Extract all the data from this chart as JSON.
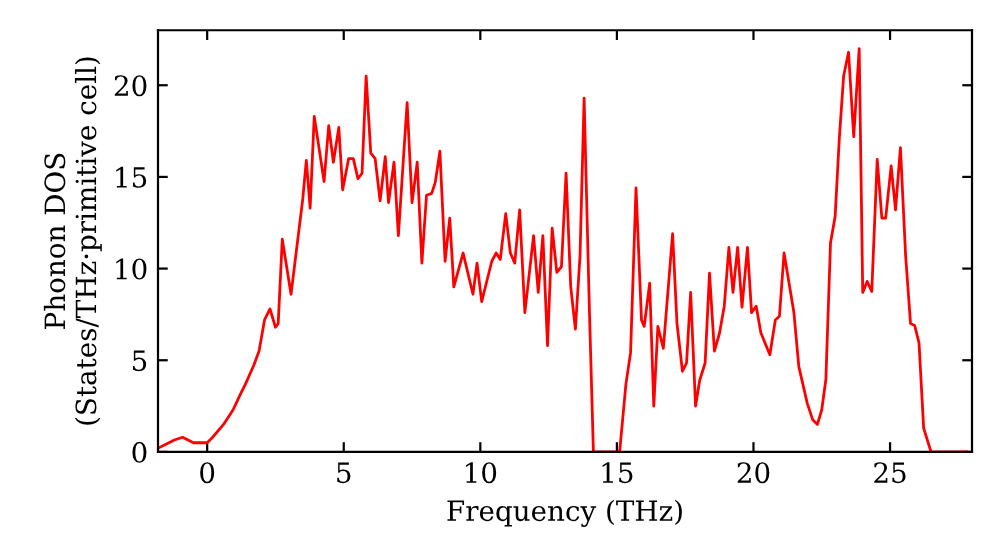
{
  "chart_data": {
    "type": "line",
    "xlabel": "Frequency (THz)",
    "ylabel": "Phonon DOS\n(States/THz·primitive cell)",
    "xlim": [
      -1.8,
      28
    ],
    "ylim": [
      0,
      23
    ],
    "xticks": [
      0,
      5,
      10,
      15,
      20,
      25
    ],
    "yticks": [
      0,
      5,
      10,
      15,
      20
    ],
    "grid": false,
    "legend": false,
    "marker": "none",
    "line_style": "solid",
    "series": [
      {
        "color": "#ff0000",
        "x": [
          -1.8,
          -1.2,
          -0.9,
          -0.5,
          0,
          0.2,
          0.6,
          0.95,
          1.2,
          1.4,
          1.7,
          1.9,
          2.1,
          2.3,
          2.5,
          2.6,
          2.75,
          3.07,
          3.5,
          3.63,
          3.77,
          3.92,
          4.28,
          4.45,
          4.62,
          4.82,
          4.96,
          5.18,
          5.35,
          5.52,
          5.67,
          5.82,
          5.99,
          6.15,
          6.33,
          6.52,
          6.64,
          6.84,
          7.0,
          7.32,
          7.5,
          7.69,
          7.86,
          8.03,
          8.22,
          8.35,
          8.52,
          8.71,
          8.88,
          9.03,
          9.37,
          9.73,
          9.88,
          10.05,
          10.42,
          10.58,
          10.73,
          10.93,
          11.1,
          11.26,
          11.44,
          11.63,
          11.95,
          12.12,
          12.29,
          12.46,
          12.63,
          12.8,
          12.97,
          13.14,
          13.31,
          13.48,
          13.65,
          13.8,
          13.99,
          14.14,
          15.1,
          15.33,
          15.5,
          15.7,
          15.9,
          16.0,
          16.2,
          16.35,
          16.5,
          16.7,
          17.04,
          17.2,
          17.4,
          17.55,
          17.7,
          17.88,
          18.03,
          18.23,
          18.39,
          18.57,
          18.76,
          18.93,
          19.1,
          19.25,
          19.42,
          19.58,
          19.78,
          19.93,
          20.1,
          20.27,
          20.6,
          20.8,
          20.95,
          21.12,
          21.48,
          21.66,
          21.97,
          22.17,
          22.34,
          22.5,
          22.65,
          22.82,
          22.99,
          23.14,
          23.3,
          23.48,
          23.67,
          23.87,
          24.0,
          24.16,
          24.33,
          24.53,
          24.7,
          24.84,
          25.04,
          25.2,
          25.38,
          25.57,
          25.75,
          25.9,
          26.06,
          26.23,
          26.5,
          27.8
        ],
        "values": [
          0.2,
          0.65,
          0.8,
          0.5,
          0.5,
          0.8,
          1.5,
          2.3,
          3.1,
          3.7,
          4.7,
          5.5,
          7.2,
          7.8,
          6.8,
          7,
          11.6,
          8.6,
          13.8,
          15.9,
          13.3,
          18.3,
          14.75,
          17.8,
          15.8,
          17.7,
          14.3,
          16,
          16,
          14.9,
          15.2,
          20.5,
          16.3,
          16,
          13.7,
          16.1,
          13.6,
          15.8,
          11.8,
          19.05,
          13.6,
          15.8,
          10.3,
          14,
          14.1,
          14.7,
          16.4,
          10.4,
          12.75,
          9,
          10.85,
          8.6,
          10.3,
          8.2,
          10.4,
          10.85,
          10.5,
          13,
          10.85,
          10.3,
          13.2,
          7.6,
          11.8,
          8.7,
          11.8,
          5.8,
          12.2,
          9.8,
          10.1,
          15.2,
          9,
          6.7,
          10.7,
          19.3,
          7.9,
          0,
          0,
          3.7,
          5.4,
          14.4,
          7.2,
          6.85,
          9.2,
          2.5,
          6.85,
          5.65,
          11.9,
          7,
          4.4,
          4.85,
          8.7,
          2.5,
          3.9,
          4.85,
          9.75,
          5.5,
          6.5,
          7.95,
          11.15,
          8.7,
          11.15,
          7.9,
          11.15,
          7.6,
          7.95,
          6.5,
          5.3,
          7.2,
          7.4,
          10.85,
          7.6,
          4.65,
          2.65,
          1.75,
          1.5,
          2.3,
          3.95,
          11.4,
          12.85,
          17.05,
          20.5,
          21.8,
          17.2,
          22,
          8.7,
          9.3,
          8.75,
          15.95,
          12.75,
          12.75,
          15.6,
          13.2,
          16.6,
          10.7,
          7,
          6.9,
          5.95,
          1.3,
          0,
          0
        ]
      }
    ]
  }
}
